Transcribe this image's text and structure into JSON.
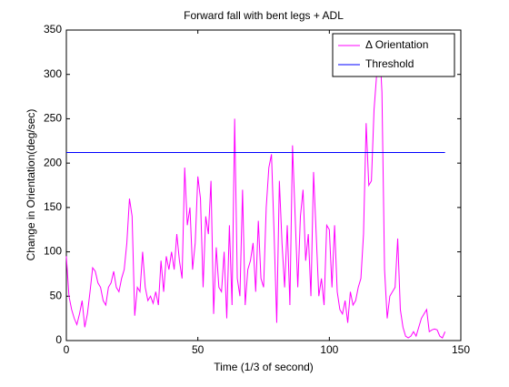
{
  "chart_data": {
    "type": "line",
    "title": "Forward fall with bent legs + ADL",
    "xlabel": "Time (1/3 of second)",
    "ylabel": "Change in Orientation(deg/sec)",
    "xlim": [
      0,
      150
    ],
    "ylim": [
      0,
      350
    ],
    "xticks": [
      0,
      50,
      100,
      150
    ],
    "yticks": [
      0,
      50,
      100,
      150,
      200,
      250,
      300,
      350
    ],
    "legend": "upper right",
    "series": [
      {
        "name": "Δ Orientation",
        "color": "#ff00ff",
        "x": [
          0,
          1,
          2,
          3,
          4,
          5,
          6,
          7,
          8,
          9,
          10,
          11,
          12,
          13,
          14,
          15,
          16,
          17,
          18,
          19,
          20,
          21,
          22,
          23,
          24,
          25,
          26,
          27,
          28,
          29,
          30,
          31,
          32,
          33,
          34,
          35,
          36,
          37,
          38,
          39,
          40,
          41,
          42,
          43,
          44,
          45,
          46,
          47,
          48,
          49,
          50,
          51,
          52,
          53,
          54,
          55,
          56,
          57,
          58,
          59,
          60,
          61,
          62,
          63,
          64,
          65,
          66,
          67,
          68,
          69,
          70,
          71,
          72,
          73,
          74,
          75,
          76,
          77,
          78,
          79,
          80,
          81,
          82,
          83,
          84,
          85,
          86,
          87,
          88,
          89,
          90,
          91,
          92,
          93,
          94,
          95,
          96,
          97,
          98,
          99,
          100,
          101,
          102,
          103,
          104,
          105,
          106,
          107,
          108,
          109,
          110,
          111,
          112,
          113,
          114,
          115,
          116,
          117,
          118,
          119,
          120,
          121,
          122,
          123,
          124,
          125,
          126,
          127,
          128,
          129,
          130,
          131,
          132,
          133,
          134,
          135,
          136,
          137,
          138,
          139,
          140,
          141,
          142,
          143,
          144
        ],
        "values": [
          95,
          50,
          35,
          25,
          18,
          30,
          45,
          15,
          30,
          55,
          82,
          78,
          65,
          60,
          45,
          40,
          60,
          65,
          78,
          60,
          55,
          70,
          80,
          110,
          160,
          140,
          28,
          60,
          55,
          100,
          60,
          45,
          50,
          42,
          55,
          40,
          90,
          55,
          95,
          80,
          100,
          80,
          120,
          90,
          70,
          195,
          130,
          150,
          80,
          110,
          185,
          160,
          60,
          140,
          120,
          180,
          30,
          105,
          60,
          55,
          100,
          25,
          130,
          40,
          250,
          70,
          50,
          170,
          40,
          80,
          90,
          110,
          55,
          135,
          70,
          60,
          150,
          195,
          210,
          120,
          20,
          180,
          110,
          60,
          130,
          40,
          220,
          140,
          60,
          140,
          170,
          90,
          120,
          50,
          190,
          120,
          50,
          70,
          40,
          130,
          125,
          60,
          130,
          55,
          35,
          30,
          45,
          20,
          55,
          40,
          45,
          60,
          70,
          120,
          245,
          175,
          180,
          260,
          300,
          340,
          280,
          80,
          25,
          50,
          55,
          60,
          115,
          35,
          15,
          5,
          3,
          5,
          10,
          5,
          15,
          25,
          30,
          35,
          10,
          12,
          13,
          12,
          5,
          3,
          10
        ]
      },
      {
        "name": "Threshold",
        "color": "#0000ff",
        "x": [
          0,
          144
        ],
        "values": [
          212,
          212
        ]
      }
    ]
  }
}
